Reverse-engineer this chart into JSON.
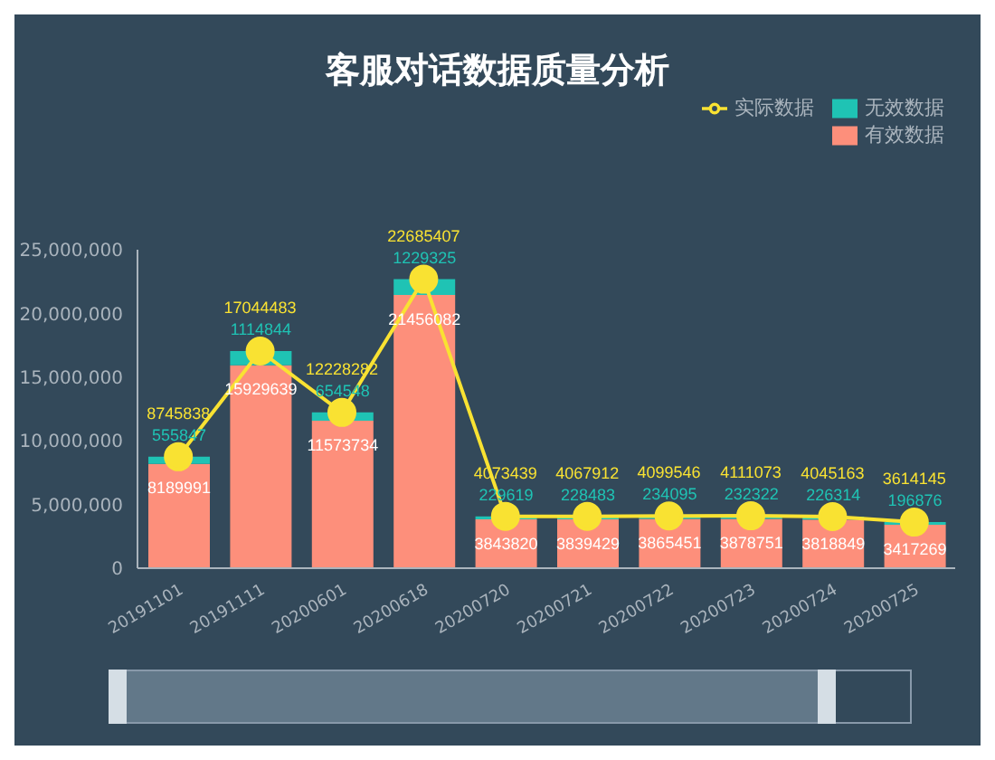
{
  "chart_data": {
    "type": "bar",
    "title": "客服对话数据质量分析",
    "categories": [
      "20191101",
      "20191111",
      "20200601",
      "20200618",
      "20200720",
      "20200721",
      "20200722",
      "20200723",
      "20200724",
      "20200725"
    ],
    "stacked": true,
    "series": [
      {
        "name": "有效数据",
        "color": "#fd8f7b",
        "values": [
          8189991,
          15929639,
          11573734,
          21456082,
          3843820,
          3839429,
          3865451,
          3878751,
          3818849,
          3417269
        ]
      },
      {
        "name": "无效数据",
        "color": "#1fc3b4",
        "values": [
          555847,
          1114844,
          654548,
          1229325,
          229619,
          228483,
          234095,
          232322,
          226314,
          196876
        ]
      },
      {
        "name": "实际数据",
        "type": "line",
        "color": "#f9e232",
        "values": [
          8745838,
          17044483,
          12228282,
          22685407,
          4073439,
          4067912,
          4099546,
          4111073,
          4045163,
          3614145
        ]
      }
    ],
    "ylim": [
      0,
      25000000
    ],
    "yticks": [
      {
        "value": 0,
        "label": "0"
      },
      {
        "value": 5000000,
        "label": "5,000,000"
      },
      {
        "value": 10000000,
        "label": "10,000,000"
      },
      {
        "value": 15000000,
        "label": "15,000,000"
      },
      {
        "value": 20000000,
        "label": "20,000,000"
      },
      {
        "value": 25000000,
        "label": "25,000,000"
      }
    ],
    "data_labels": true,
    "grid": false,
    "legend": "top right",
    "marker": "circle"
  }
}
